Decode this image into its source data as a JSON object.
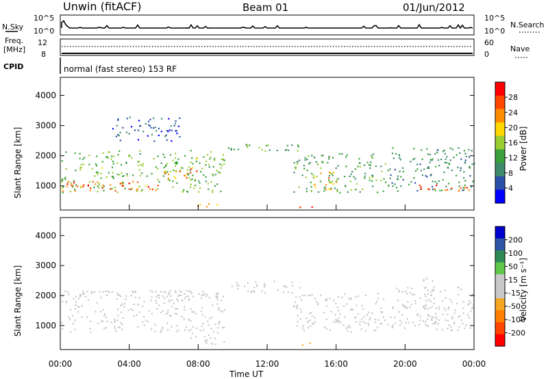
{
  "header": {
    "station": "Unwin (fitACF)",
    "beam": "Beam 01",
    "date": "01/Jun/2012"
  },
  "param_panel": {
    "nsky_label": "N.Sky",
    "nsky_ticks": [
      "10^5",
      "10^0"
    ],
    "nsearch_label": "N.Search",
    "nsearch_ticks": [
      "10^5",
      "10^0"
    ],
    "freq_label_1": "Freq.",
    "freq_label_2": "[MHz]",
    "freq_ticks": [
      "12",
      "8"
    ],
    "nave_label": "Nave",
    "nave_ticks": [
      "60",
      "0"
    ],
    "cpid_label": "CPID",
    "cpid_value": "normal (fast stereo) 153 RF"
  },
  "colors": {
    "power_scale": [
      "#0000ff",
      "#2b4fa8",
      "#3f8a6b",
      "#3aa13a",
      "#9acd32",
      "#ffd700",
      "#ff8c00",
      "#ff4500",
      "#ff0000"
    ],
    "velocity_scale": [
      "#0000cd",
      "#2e56a8",
      "#2e8b57",
      "#5fc84b",
      "#c8c8c8",
      "#c8c8c8",
      "#f5a623",
      "#ff7f00",
      "#ff4500",
      "#ff0000"
    ]
  },
  "chart_data": [
    {
      "type": "heatmap",
      "title": "Power",
      "ylabel": "Slant Range [km]",
      "yticks": [
        "1000",
        "2000",
        "3000",
        "4000"
      ],
      "ylim": [
        200,
        4600
      ],
      "colorbar_label": "Power [dB]",
      "colorbar_ticks": [
        "4",
        "8",
        "12",
        "16",
        "20",
        "24",
        "28"
      ],
      "colorbar_range": [
        0,
        32
      ],
      "xlim": [
        "00:00",
        "24:00"
      ],
      "bands": [
        {
          "t0": 0.0,
          "t1": 9.5,
          "r0": 800,
          "r1": 2200,
          "value": 14
        },
        {
          "t0": 0.1,
          "t1": 6.0,
          "r0": 850,
          "r1": 1200,
          "value": 26
        },
        {
          "t0": 6.0,
          "t1": 8.0,
          "r0": 1200,
          "r1": 1600,
          "value": 24
        },
        {
          "t0": 3.0,
          "t1": 7.0,
          "r0": 2500,
          "r1": 3300,
          "value": 6
        },
        {
          "t0": 7.5,
          "t1": 9.5,
          "r0": 300,
          "r1": 450,
          "value": 24
        },
        {
          "t0": 9.5,
          "t1": 14.0,
          "r0": 2100,
          "r1": 2400,
          "value": 12
        },
        {
          "t0": 13.8,
          "t1": 14.8,
          "r0": 300,
          "r1": 450,
          "value": 28
        },
        {
          "t0": 13.5,
          "t1": 19.0,
          "r0": 800,
          "r1": 2100,
          "value": 12
        },
        {
          "t0": 14.5,
          "t1": 16.0,
          "r0": 900,
          "r1": 1500,
          "value": 22
        },
        {
          "t0": 19.0,
          "t1": 24.0,
          "r0": 850,
          "r1": 2300,
          "value": 10
        },
        {
          "t0": 20.5,
          "t1": 24.0,
          "r0": 850,
          "r1": 1100,
          "value": 26
        }
      ]
    },
    {
      "type": "heatmap",
      "title": "Velocity",
      "ylabel": "Slant Range [km]",
      "yticks": [
        "1000",
        "2000",
        "3000",
        "4000"
      ],
      "ylim": [
        200,
        4600
      ],
      "xlabel": "Time UT",
      "xticks": [
        "00:00",
        "04:00",
        "08:00",
        "12:00",
        "16:00",
        "20:00",
        "00:00"
      ],
      "colorbar_label": "Velocity [m s⁻¹]",
      "colorbar_ticks": [
        "200",
        "100",
        "50",
        "15",
        "-15",
        "-50",
        "-100",
        "-200"
      ],
      "colorbar_range": [
        -250,
        250
      ],
      "bands": [
        {
          "t0": 0.0,
          "t1": 9.5,
          "r0": 800,
          "r1": 2200,
          "value": 0
        },
        {
          "t0": 5.0,
          "t1": 7.0,
          "r0": 1800,
          "r1": 2200,
          "value": -30
        },
        {
          "t0": 7.5,
          "t1": 9.5,
          "r0": 400,
          "r1": 900,
          "value": -40
        },
        {
          "t0": 9.5,
          "t1": 14.0,
          "r0": 2100,
          "r1": 2500,
          "value": 0
        },
        {
          "t0": 14.0,
          "t1": 14.8,
          "r0": 300,
          "r1": 450,
          "value": -60
        },
        {
          "t0": 13.5,
          "t1": 19.0,
          "r0": 800,
          "r1": 2100,
          "value": 0
        },
        {
          "t0": 19.0,
          "t1": 24.0,
          "r0": 850,
          "r1": 2300,
          "value": 0
        },
        {
          "t0": 21.0,
          "t1": 21.8,
          "r0": 900,
          "r1": 2800,
          "value": 40
        }
      ]
    }
  ]
}
